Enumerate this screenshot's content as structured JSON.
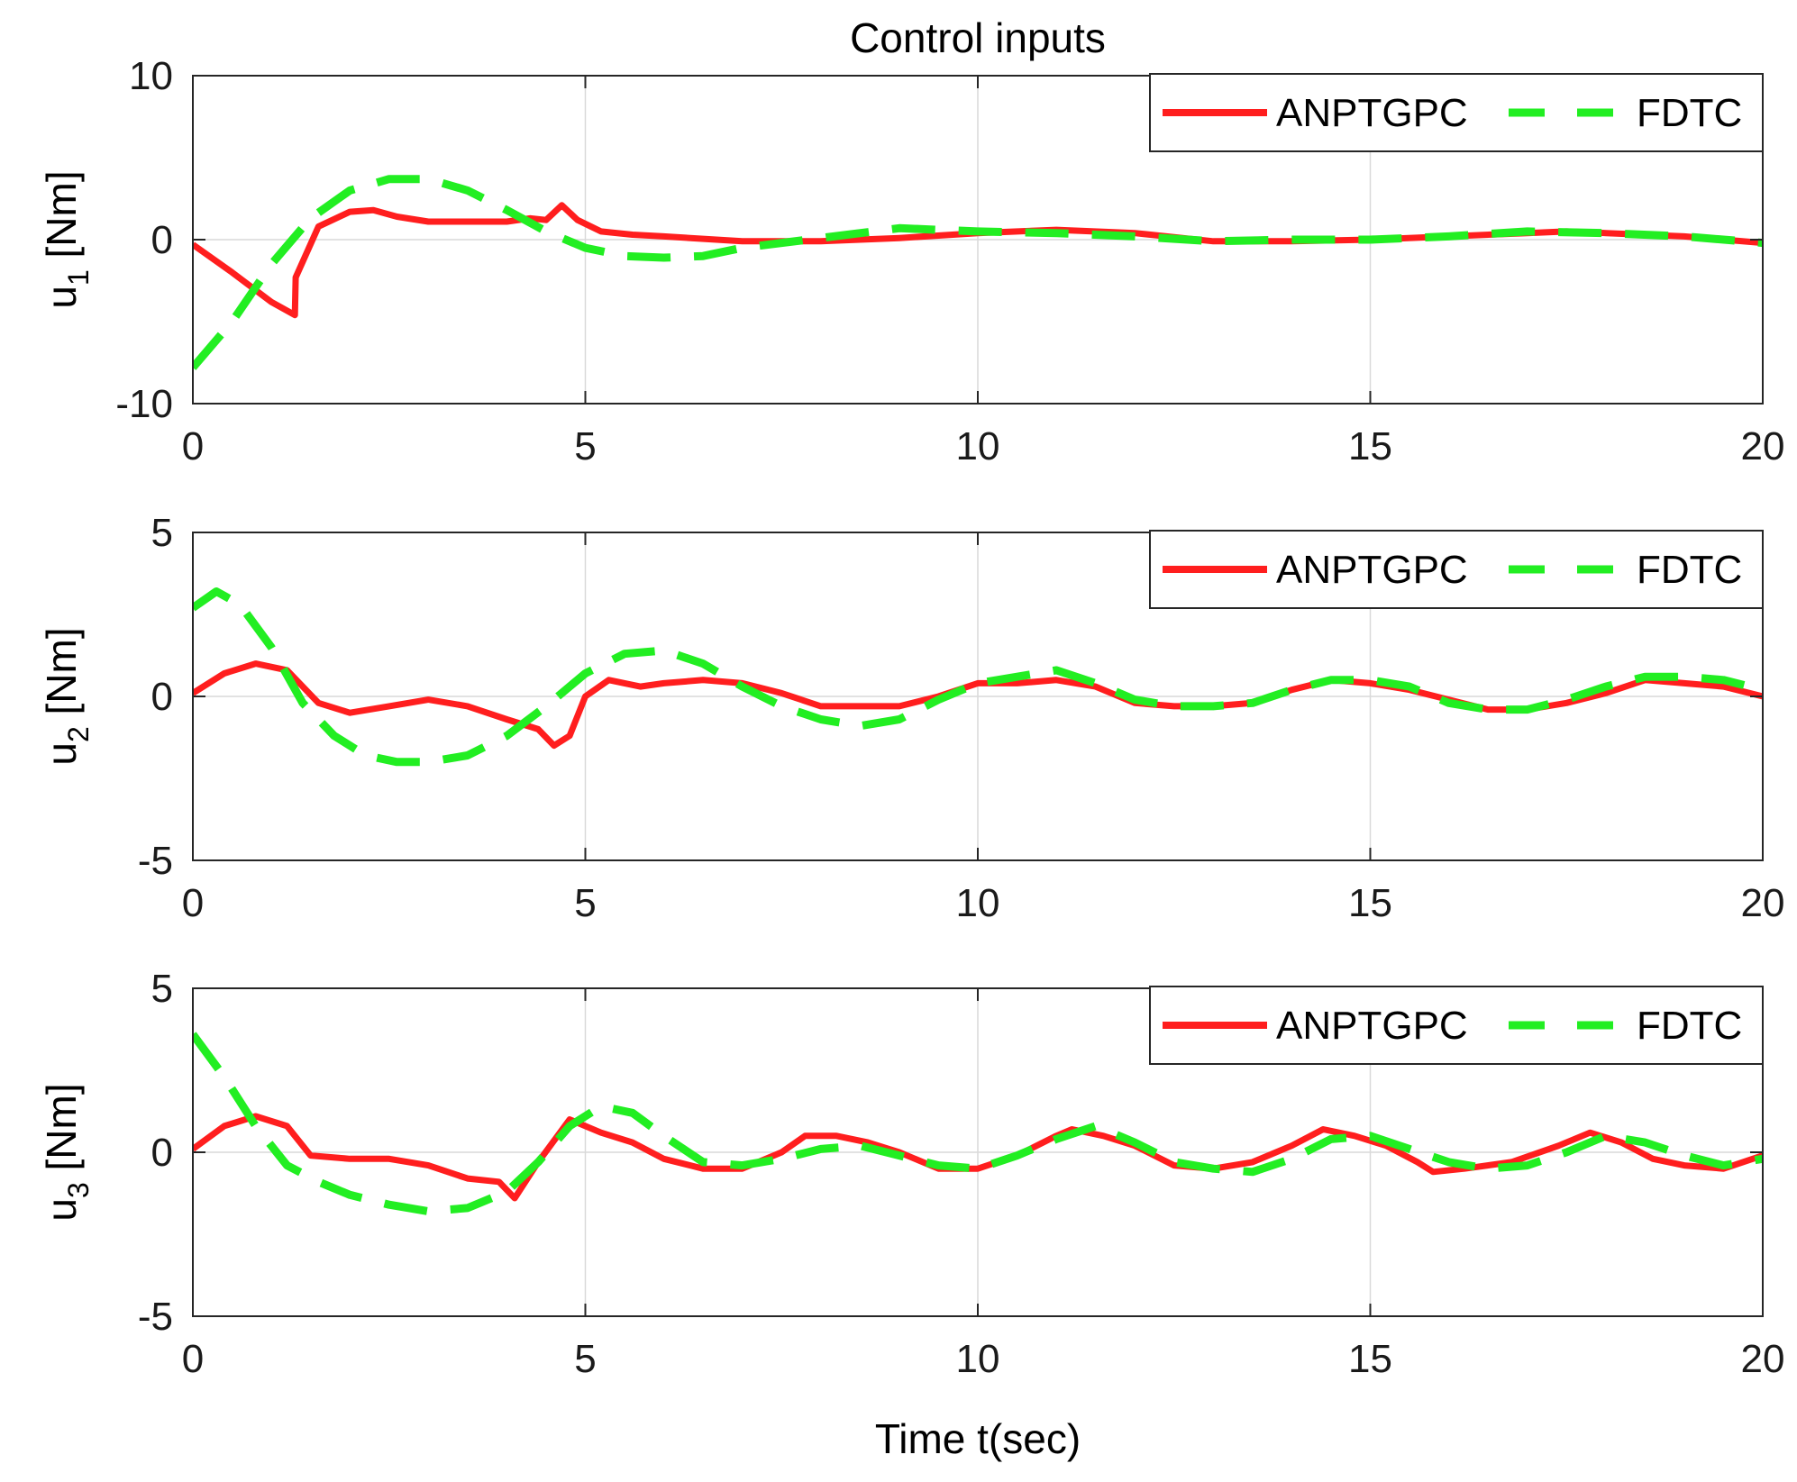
{
  "colors": {
    "anptgpc": "#ff1e1e",
    "fdtc": "#22ee22",
    "grid": "#d9d9d9",
    "axis": "#262626"
  },
  "chart_data": [
    {
      "type": "line",
      "title": "Control inputs",
      "ylabel_main": "u",
      "ylabel_sub": "1",
      "ylabel_unit": "[Nm]",
      "xlabel": "",
      "xlim": [
        0,
        20
      ],
      "ylim": [
        -10,
        10
      ],
      "xticks": [
        0,
        5,
        10,
        15,
        20
      ],
      "yticks": [
        -10,
        0,
        10
      ],
      "xtick_labels": [
        "0",
        "5",
        "10",
        "15",
        "20"
      ],
      "ytick_labels": [
        "-10",
        "0",
        "10"
      ],
      "grid": true,
      "legend": {
        "position": "top-right",
        "entries": [
          "ANPTGPC",
          "FDTC"
        ]
      },
      "series": [
        {
          "name": "ANPTGPC",
          "style": "solid",
          "x": [
            0,
            0.5,
            1.0,
            1.3,
            1.31,
            1.6,
            2.0,
            2.3,
            2.6,
            3.0,
            3.5,
            4.0,
            4.3,
            4.5,
            4.7,
            4.9,
            5.2,
            5.6,
            6.0,
            7.0,
            8.0,
            9.0,
            10.0,
            11.0,
            12.0,
            13.0,
            14.0,
            15.0,
            16.0,
            17.0,
            17.5,
            18.0,
            19.0,
            20.0
          ],
          "y": [
            -0.3,
            -2.0,
            -3.8,
            -4.6,
            -2.3,
            0.8,
            1.7,
            1.8,
            1.4,
            1.1,
            1.1,
            1.1,
            1.3,
            1.2,
            2.1,
            1.2,
            0.5,
            0.3,
            0.2,
            -0.1,
            -0.1,
            0.1,
            0.4,
            0.6,
            0.4,
            -0.1,
            -0.1,
            0.0,
            0.2,
            0.4,
            0.5,
            0.4,
            0.2,
            -0.2
          ]
        },
        {
          "name": "FDTC",
          "style": "dashed",
          "x": [
            0,
            0.5,
            1.0,
            1.5,
            2.0,
            2.5,
            3.0,
            3.5,
            4.0,
            4.5,
            5.0,
            5.5,
            6.0,
            6.5,
            7.0,
            8.0,
            9.0,
            10.0,
            11.0,
            12.0,
            13.0,
            14.0,
            15.0,
            16.0,
            17.0,
            18.0,
            19.0,
            20.0
          ],
          "y": [
            -7.8,
            -5.0,
            -1.5,
            1.3,
            3.0,
            3.7,
            3.7,
            3.0,
            1.8,
            0.5,
            -0.5,
            -1.0,
            -1.1,
            -1.0,
            -0.5,
            0.1,
            0.7,
            0.5,
            0.4,
            0.2,
            -0.1,
            0.0,
            0.0,
            0.2,
            0.5,
            0.4,
            0.2,
            -0.2
          ]
        }
      ]
    },
    {
      "type": "line",
      "ylabel_main": "u",
      "ylabel_sub": "2",
      "ylabel_unit": "[Nm]",
      "xlabel": "",
      "xlim": [
        0,
        20
      ],
      "ylim": [
        -5,
        5
      ],
      "xticks": [
        0,
        5,
        10,
        15,
        20
      ],
      "yticks": [
        -5,
        0,
        5
      ],
      "xtick_labels": [
        "0",
        "5",
        "10",
        "15",
        "20"
      ],
      "ytick_labels": [
        "-5",
        "0",
        "5"
      ],
      "grid": true,
      "legend": {
        "position": "top-right",
        "entries": [
          "ANPTGPC",
          "FDTC"
        ]
      },
      "series": [
        {
          "name": "ANPTGPC",
          "style": "solid",
          "x": [
            0,
            0.4,
            0.8,
            1.2,
            1.6,
            2.0,
            2.5,
            3.0,
            3.5,
            4.0,
            4.4,
            4.6,
            4.8,
            5.0,
            5.3,
            5.7,
            6.0,
            6.5,
            7.0,
            7.5,
            8.0,
            8.5,
            9.0,
            9.5,
            10.0,
            10.5,
            11.0,
            11.5,
            12.0,
            12.5,
            13.0,
            13.5,
            14.0,
            14.5,
            15.0,
            15.5,
            16.0,
            16.5,
            17.0,
            17.5,
            18.0,
            18.5,
            19.0,
            19.5,
            20.0
          ],
          "y": [
            0.1,
            0.7,
            1.0,
            0.8,
            -0.2,
            -0.5,
            -0.3,
            -0.1,
            -0.3,
            -0.7,
            -1.0,
            -1.5,
            -1.2,
            0.0,
            0.5,
            0.3,
            0.4,
            0.5,
            0.4,
            0.1,
            -0.3,
            -0.3,
            -0.3,
            0.0,
            0.4,
            0.4,
            0.5,
            0.3,
            -0.2,
            -0.3,
            -0.3,
            -0.2,
            0.2,
            0.5,
            0.4,
            0.2,
            -0.1,
            -0.4,
            -0.4,
            -0.2,
            0.1,
            0.5,
            0.4,
            0.3,
            0.0
          ]
        },
        {
          "name": "FDTC",
          "style": "dashed",
          "x": [
            0,
            0.3,
            0.6,
            1.0,
            1.4,
            1.8,
            2.2,
            2.6,
            3.0,
            3.5,
            4.0,
            4.5,
            5.0,
            5.5,
            6.0,
            6.5,
            7.0,
            7.5,
            8.0,
            8.5,
            9.0,
            9.5,
            10.0,
            10.5,
            11.0,
            11.5,
            12.0,
            12.5,
            13.0,
            13.5,
            14.0,
            14.5,
            15.0,
            15.5,
            16.0,
            16.5,
            17.0,
            17.5,
            18.0,
            18.5,
            19.0,
            19.5,
            20.0
          ],
          "y": [
            2.7,
            3.2,
            2.8,
            1.5,
            -0.2,
            -1.2,
            -1.8,
            -2.0,
            -2.0,
            -1.8,
            -1.2,
            -0.3,
            0.7,
            1.3,
            1.4,
            1.0,
            0.3,
            -0.3,
            -0.7,
            -0.9,
            -0.7,
            -0.1,
            0.4,
            0.6,
            0.8,
            0.4,
            -0.1,
            -0.3,
            -0.3,
            -0.2,
            0.2,
            0.5,
            0.5,
            0.3,
            -0.2,
            -0.4,
            -0.4,
            -0.1,
            0.3,
            0.6,
            0.6,
            0.5,
            0.2
          ]
        }
      ]
    },
    {
      "type": "line",
      "ylabel_main": "u",
      "ylabel_sub": "3",
      "ylabel_unit": "[Nm]",
      "xlabel": "Time t(sec)",
      "xlim": [
        0,
        20
      ],
      "ylim": [
        -5,
        5
      ],
      "xticks": [
        0,
        5,
        10,
        15,
        20
      ],
      "yticks": [
        -5,
        0,
        5
      ],
      "xtick_labels": [
        "0",
        "5",
        "10",
        "15",
        "20"
      ],
      "ytick_labels": [
        "-5",
        "0",
        "5"
      ],
      "grid": true,
      "legend": {
        "position": "top-right",
        "entries": [
          "ANPTGPC",
          "FDTC"
        ]
      },
      "series": [
        {
          "name": "ANPTGPC",
          "style": "solid",
          "x": [
            0,
            0.4,
            0.8,
            1.2,
            1.5,
            2.0,
            2.5,
            3.0,
            3.5,
            3.9,
            4.1,
            4.4,
            4.8,
            5.2,
            5.6,
            6.0,
            6.5,
            7.0,
            7.5,
            7.8,
            8.2,
            8.6,
            9.0,
            9.5,
            10.0,
            10.5,
            11.0,
            11.2,
            11.6,
            12.0,
            12.5,
            13.0,
            13.5,
            14.0,
            14.4,
            14.8,
            15.2,
            15.6,
            15.8,
            16.2,
            16.8,
            17.4,
            17.8,
            18.2,
            18.6,
            19.0,
            19.5,
            20.0
          ],
          "y": [
            0.1,
            0.8,
            1.1,
            0.8,
            -0.1,
            -0.2,
            -0.2,
            -0.4,
            -0.8,
            -0.9,
            -1.4,
            -0.3,
            1.0,
            0.6,
            0.3,
            -0.2,
            -0.5,
            -0.5,
            0.0,
            0.5,
            0.5,
            0.3,
            0.0,
            -0.5,
            -0.5,
            -0.1,
            0.5,
            0.7,
            0.5,
            0.2,
            -0.4,
            -0.5,
            -0.3,
            0.2,
            0.7,
            0.5,
            0.2,
            -0.3,
            -0.6,
            -0.5,
            -0.3,
            0.2,
            0.6,
            0.3,
            -0.2,
            -0.4,
            -0.5,
            -0.1
          ]
        },
        {
          "name": "FDTC",
          "style": "dashed",
          "x": [
            0,
            0.4,
            0.8,
            1.2,
            1.6,
            2.0,
            2.5,
            3.0,
            3.5,
            4.0,
            4.4,
            4.8,
            5.2,
            5.6,
            6.0,
            6.5,
            7.0,
            7.5,
            8.0,
            8.5,
            9.0,
            9.5,
            10.0,
            10.5,
            11.0,
            11.5,
            12.0,
            12.5,
            13.0,
            13.5,
            14.0,
            14.5,
            15.0,
            15.5,
            16.0,
            16.5,
            17.0,
            17.5,
            18.0,
            18.5,
            19.0,
            19.5,
            20.0
          ],
          "y": [
            3.6,
            2.3,
            0.8,
            -0.4,
            -0.9,
            -1.3,
            -1.6,
            -1.8,
            -1.7,
            -1.2,
            -0.3,
            0.8,
            1.4,
            1.2,
            0.5,
            -0.3,
            -0.4,
            -0.2,
            0.1,
            0.2,
            -0.1,
            -0.4,
            -0.5,
            -0.1,
            0.4,
            0.8,
            0.3,
            -0.3,
            -0.5,
            -0.6,
            -0.2,
            0.4,
            0.5,
            0.1,
            -0.3,
            -0.5,
            -0.4,
            0.0,
            0.5,
            0.3,
            -0.1,
            -0.4,
            -0.2
          ]
        }
      ]
    }
  ]
}
